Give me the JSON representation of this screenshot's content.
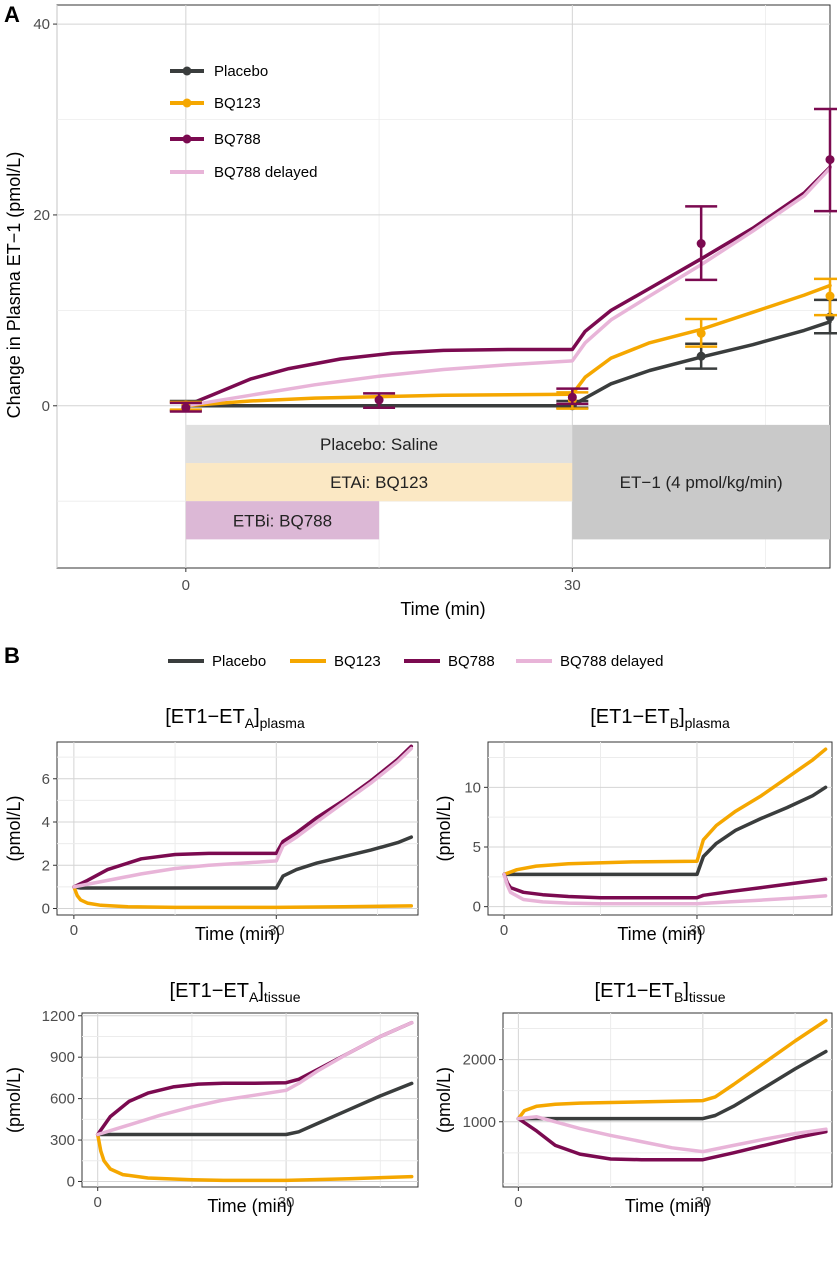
{
  "colors": {
    "placebo": "#3a3d3d",
    "bq123": "#f5a700",
    "bq788": "#7b0a50",
    "bq788_delayed": "#e8b4d8",
    "band_saline": "#e0e0e0",
    "band_eta": "#fbe8c4",
    "band_etb": "#dcb8d6",
    "band_et1": "#c9c9c9"
  },
  "series_names": [
    "Placebo",
    "BQ123",
    "BQ788",
    "BQ788 delayed"
  ],
  "chart_data": [
    {
      "panel": "A",
      "type": "line",
      "title": "",
      "xlabel": "Time (min)",
      "ylabel": "Change in Plasma ET−1 (pmol/L)",
      "xlim": [
        -10,
        50
      ],
      "ylim": [
        -17,
        42
      ],
      "xticks": [
        0,
        30
      ],
      "yticks": [
        0,
        20,
        40
      ],
      "grid": true,
      "legend_position": "top-left",
      "series": [
        {
          "name": "Placebo",
          "x": [
            0,
            30,
            31,
            33,
            36,
            40,
            44,
            48,
            50
          ],
          "y": [
            0,
            0,
            0.8,
            2.3,
            3.7,
            5.1,
            6.4,
            7.9,
            8.8
          ]
        },
        {
          "name": "BQ123",
          "x": [
            0,
            5,
            10,
            20,
            30,
            31,
            33,
            36,
            40,
            44,
            48,
            50
          ],
          "y": [
            0,
            0.5,
            0.8,
            1.1,
            1.2,
            3.0,
            5.0,
            6.6,
            8.0,
            9.8,
            11.6,
            12.6
          ]
        },
        {
          "name": "BQ788",
          "x": [
            0,
            2,
            5,
            8,
            12,
            16,
            20,
            25,
            30,
            31,
            33,
            36,
            40,
            44,
            48,
            50
          ],
          "y": [
            0,
            1.1,
            2.8,
            3.9,
            4.9,
            5.5,
            5.8,
            5.9,
            5.9,
            7.8,
            10.0,
            12.3,
            15.4,
            18.6,
            22.3,
            25.0
          ]
        },
        {
          "name": "BQ788 delayed",
          "x": [
            0,
            5,
            10,
            15,
            20,
            25,
            30,
            31,
            33,
            36,
            40,
            44,
            48,
            50
          ],
          "y": [
            0,
            1.1,
            2.2,
            3.1,
            3.8,
            4.3,
            4.7,
            6.6,
            9.0,
            11.5,
            14.8,
            18.3,
            22.0,
            24.9
          ]
        }
      ],
      "observations": [
        {
          "name": "Placebo",
          "x": [
            0,
            30,
            40,
            50
          ],
          "y": [
            0,
            0,
            5.2,
            9.3
          ],
          "lo": [
            -0.5,
            -0.2,
            3.9,
            7.6
          ],
          "hi": [
            0.5,
            0.5,
            6.5,
            11.1
          ]
        },
        {
          "name": "BQ123",
          "x": [
            0,
            30,
            40,
            50
          ],
          "y": [
            0.1,
            0.6,
            7.6,
            11.5
          ],
          "lo": [
            -0.4,
            -0.3,
            6.2,
            9.5
          ],
          "hi": [
            0.4,
            1.4,
            9.1,
            13.3
          ]
        },
        {
          "name": "BQ788",
          "x": [
            0,
            15,
            30,
            40,
            50
          ],
          "y": [
            -0.2,
            0.6,
            0.9,
            17.0,
            25.8
          ],
          "lo": [
            -0.6,
            -0.2,
            0.2,
            13.2,
            20.4
          ],
          "hi": [
            0.3,
            1.3,
            1.8,
            20.9,
            31.1
          ]
        }
      ],
      "bands": [
        {
          "label": "Placebo: Saline",
          "x0": 0,
          "x1": 30,
          "y0": -6,
          "y1": -2,
          "color_key": "band_saline"
        },
        {
          "label": "ETAi: BQ123",
          "x0": 0,
          "x1": 30,
          "y0": -10,
          "y1": -6,
          "color_key": "band_eta"
        },
        {
          "label": "ETBi: BQ788",
          "x0": 0,
          "x1": 15,
          "y0": -14,
          "y1": -10,
          "color_key": "band_etb"
        },
        {
          "label": "ET−1 (4 pmol/kg/min)",
          "x0": 30,
          "x1": 50,
          "y0": -14,
          "y1": -2,
          "color_key": "band_et1"
        }
      ]
    },
    {
      "panel": "B1",
      "type": "line",
      "title_main": "[ET1−ET",
      "title_sub_a": "A",
      "title_bracket": "]",
      "title_sub_b": "plasma",
      "xlabel": "Time (min)",
      "ylabel": "(pmol/L)",
      "xlim": [
        -2.5,
        51
      ],
      "ylim": [
        -0.3,
        7.7
      ],
      "xticks": [
        0,
        30
      ],
      "yticks": [
        0,
        2,
        4,
        6
      ],
      "grid": true,
      "series": [
        {
          "name": "Placebo",
          "x": [
            0,
            1,
            30,
            31,
            33,
            36,
            40,
            44,
            48,
            50
          ],
          "y": [
            1.0,
            0.95,
            0.95,
            1.5,
            1.8,
            2.1,
            2.4,
            2.7,
            3.05,
            3.3
          ]
        },
        {
          "name": "BQ123",
          "x": [
            0,
            0.5,
            1,
            2,
            4,
            8,
            15,
            30,
            40,
            50
          ],
          "y": [
            1.0,
            0.6,
            0.4,
            0.25,
            0.15,
            0.08,
            0.05,
            0.05,
            0.08,
            0.12
          ]
        },
        {
          "name": "BQ788",
          "x": [
            0,
            2,
            5,
            10,
            15,
            20,
            25,
            30,
            31,
            33,
            36,
            40,
            44,
            48,
            50
          ],
          "y": [
            1.0,
            1.3,
            1.8,
            2.3,
            2.5,
            2.55,
            2.55,
            2.55,
            3.1,
            3.5,
            4.2,
            5.0,
            5.9,
            6.9,
            7.5
          ]
        },
        {
          "name": "BQ788 delayed",
          "x": [
            0,
            5,
            10,
            15,
            20,
            25,
            30,
            31,
            33,
            36,
            40,
            44,
            48,
            50
          ],
          "y": [
            1.0,
            1.3,
            1.6,
            1.85,
            2.0,
            2.1,
            2.2,
            2.9,
            3.3,
            4.0,
            4.9,
            5.8,
            6.8,
            7.4
          ]
        }
      ]
    },
    {
      "panel": "B2",
      "type": "line",
      "title_main": "[ET1−ET",
      "title_sub_a": "B",
      "title_bracket": "]",
      "title_sub_b": "plasma",
      "xlabel": "Time (min)",
      "ylabel": "(pmol/L)",
      "xlim": [
        -2.5,
        51
      ],
      "ylim": [
        -0.7,
        13.8
      ],
      "xticks": [
        0,
        30
      ],
      "yticks": [
        0,
        5,
        10
      ],
      "grid": true,
      "series": [
        {
          "name": "Placebo",
          "x": [
            0,
            30,
            31,
            33,
            36,
            40,
            44,
            48,
            50
          ],
          "y": [
            2.7,
            2.7,
            4.2,
            5.3,
            6.4,
            7.4,
            8.3,
            9.3,
            10.0
          ]
        },
        {
          "name": "BQ123",
          "x": [
            0,
            2,
            5,
            10,
            20,
            30,
            31,
            33,
            36,
            40,
            44,
            48,
            50
          ],
          "y": [
            2.7,
            3.1,
            3.4,
            3.6,
            3.75,
            3.8,
            5.6,
            6.8,
            8.0,
            9.3,
            10.8,
            12.3,
            13.2
          ]
        },
        {
          "name": "BQ788",
          "x": [
            0,
            0.5,
            1,
            3,
            6,
            10,
            15,
            20,
            30,
            31,
            35,
            40,
            45,
            50
          ],
          "y": [
            2.7,
            2.0,
            1.6,
            1.2,
            1.0,
            0.85,
            0.75,
            0.75,
            0.75,
            0.95,
            1.25,
            1.6,
            1.95,
            2.3
          ]
        },
        {
          "name": "BQ788 delayed",
          "x": [
            0,
            0.5,
            1,
            3,
            6,
            10,
            15,
            20,
            30,
            35,
            40,
            45,
            50
          ],
          "y": [
            2.7,
            1.8,
            1.2,
            0.6,
            0.4,
            0.3,
            0.25,
            0.25,
            0.25,
            0.4,
            0.55,
            0.72,
            0.9
          ]
        }
      ]
    },
    {
      "panel": "B3",
      "type": "line",
      "title_main": "[ET1−ET",
      "title_sub_a": "A",
      "title_bracket": "]",
      "title_sub_b": "tissue",
      "xlabel": "Time (min)",
      "ylabel": "(pmol/L)",
      "xlim": [
        -2.5,
        51
      ],
      "ylim": [
        -40,
        1220
      ],
      "xticks": [
        0,
        30
      ],
      "yticks": [
        0,
        300,
        600,
        900,
        1200
      ],
      "grid": true,
      "series": [
        {
          "name": "Placebo",
          "x": [
            0,
            30,
            32,
            35,
            40,
            45,
            50
          ],
          "y": [
            340,
            340,
            360,
            420,
            520,
            620,
            710
          ]
        },
        {
          "name": "BQ123",
          "x": [
            0,
            0.5,
            1,
            2,
            4,
            8,
            15,
            20,
            30,
            40,
            50
          ],
          "y": [
            340,
            220,
            150,
            90,
            50,
            25,
            12,
            8,
            8,
            20,
            35
          ]
        },
        {
          "name": "BQ788",
          "x": [
            0,
            2,
            5,
            8,
            12,
            16,
            20,
            25,
            30,
            32,
            35,
            40,
            45,
            50
          ],
          "y": [
            340,
            470,
            580,
            640,
            685,
            705,
            712,
            712,
            715,
            740,
            810,
            930,
            1050,
            1150
          ]
        },
        {
          "name": "BQ788 delayed",
          "x": [
            0,
            5,
            10,
            15,
            20,
            25,
            30,
            32,
            35,
            40,
            45,
            50
          ],
          "y": [
            340,
            410,
            480,
            540,
            590,
            625,
            660,
            710,
            800,
            930,
            1050,
            1150
          ]
        }
      ]
    },
    {
      "panel": "B4",
      "type": "line",
      "title_main": "[ET1−ET",
      "title_sub_a": "B",
      "title_bracket": "]",
      "title_sub_b": "tissue",
      "xlabel": "Time (min)",
      "ylabel": "(pmol/L)",
      "xlim": [
        -2.5,
        51
      ],
      "ylim": [
        -50,
        2750
      ],
      "xticks": [
        0,
        30
      ],
      "yticks": [
        1000,
        2000
      ],
      "grid": true,
      "series": [
        {
          "name": "Placebo",
          "x": [
            0,
            30,
            32,
            35,
            40,
            45,
            50
          ],
          "y": [
            1050,
            1050,
            1100,
            1250,
            1550,
            1850,
            2130
          ]
        },
        {
          "name": "BQ123",
          "x": [
            0,
            1,
            3,
            6,
            10,
            20,
            30,
            32,
            35,
            40,
            45,
            50
          ],
          "y": [
            1050,
            1180,
            1250,
            1280,
            1300,
            1320,
            1340,
            1400,
            1600,
            1950,
            2300,
            2630
          ]
        },
        {
          "name": "BQ788",
          "x": [
            0,
            3,
            6,
            10,
            15,
            20,
            25,
            30,
            35,
            40,
            45,
            50
          ],
          "y": [
            1050,
            850,
            620,
            480,
            400,
            390,
            390,
            390,
            500,
            620,
            740,
            840
          ]
        },
        {
          "name": "BQ788 delayed",
          "x": [
            0,
            3,
            6,
            10,
            15,
            20,
            25,
            30,
            35,
            40,
            45,
            50
          ],
          "y": [
            1050,
            1080,
            1000,
            890,
            780,
            680,
            580,
            520,
            620,
            720,
            810,
            880
          ]
        }
      ]
    }
  ],
  "labels": {
    "panel_a": "A",
    "panel_b": "B"
  }
}
